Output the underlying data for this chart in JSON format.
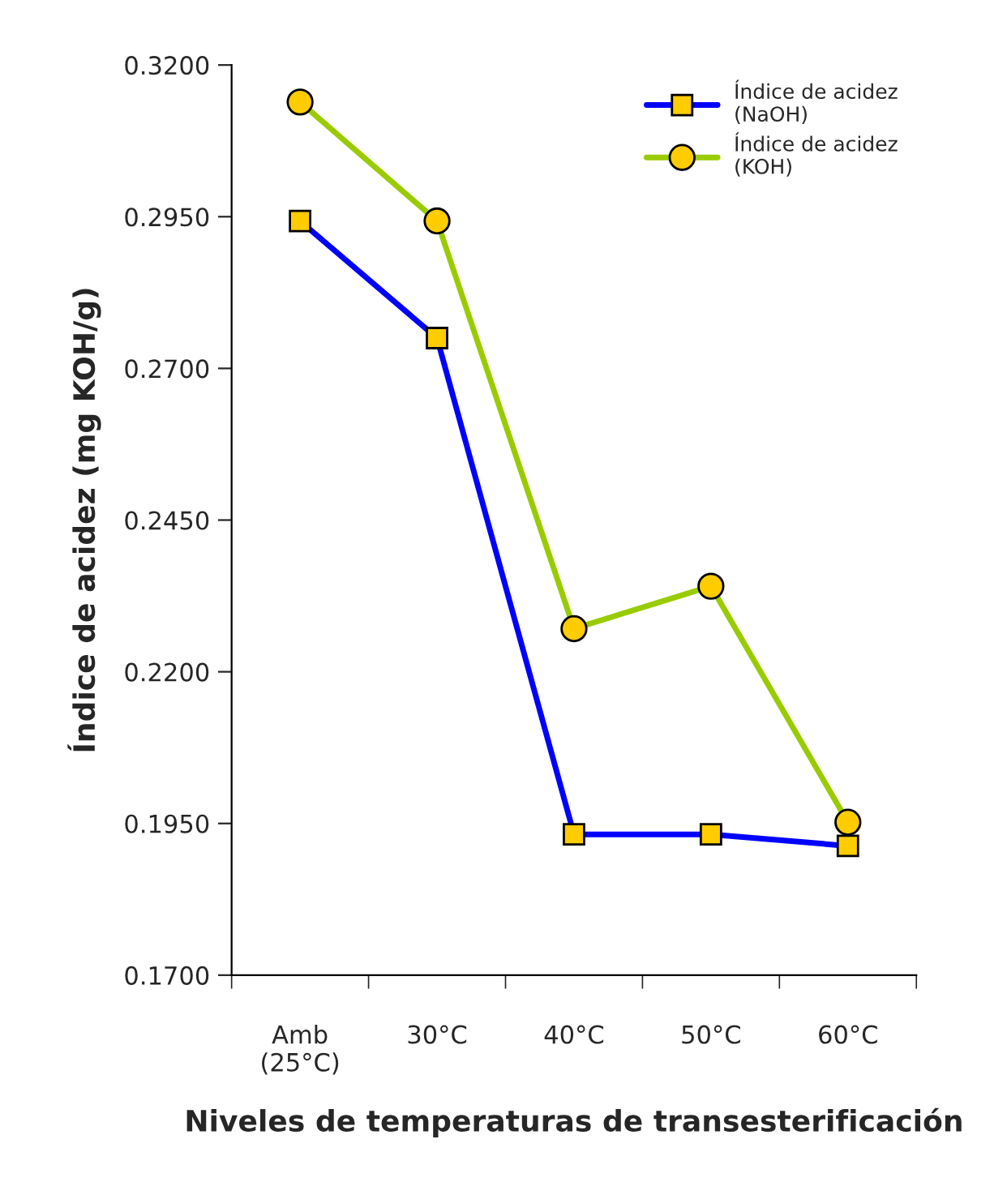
{
  "chart_data": {
    "type": "line",
    "xlabel": "Niveles de temperaturas de transesterificación",
    "ylabel": "Índice de acidez (mg KOH/g)",
    "categories": [
      "Amb\n(25°C)",
      "30°C",
      "40°C",
      "50°C",
      "60°C"
    ],
    "series": [
      {
        "name": "Índice de acidez\n(NaOH)",
        "color": "#0000ff",
        "marker": "square",
        "values": [
          0.2943,
          0.275,
          0.1932,
          0.1932,
          0.1913
        ]
      },
      {
        "name": "Índice de acidez\n(KOH)",
        "color": "#99cc00",
        "marker": "circle",
        "values": [
          0.3139,
          0.2943,
          0.2271,
          0.2341,
          0.1952
        ]
      }
    ],
    "ylim": [
      0.17,
      0.32
    ],
    "yticks": [
      {
        "value": 0.17,
        "label": "0.1700"
      },
      {
        "value": 0.195,
        "label": "0.1950"
      },
      {
        "value": 0.22,
        "label": "0.2200"
      },
      {
        "value": 0.245,
        "label": "0.2450"
      },
      {
        "value": 0.27,
        "label": "0.2700"
      },
      {
        "value": 0.295,
        "label": "0.2950"
      },
      {
        "value": 0.32,
        "label": "0.3200"
      }
    ],
    "grid": false,
    "legend": "top right"
  }
}
